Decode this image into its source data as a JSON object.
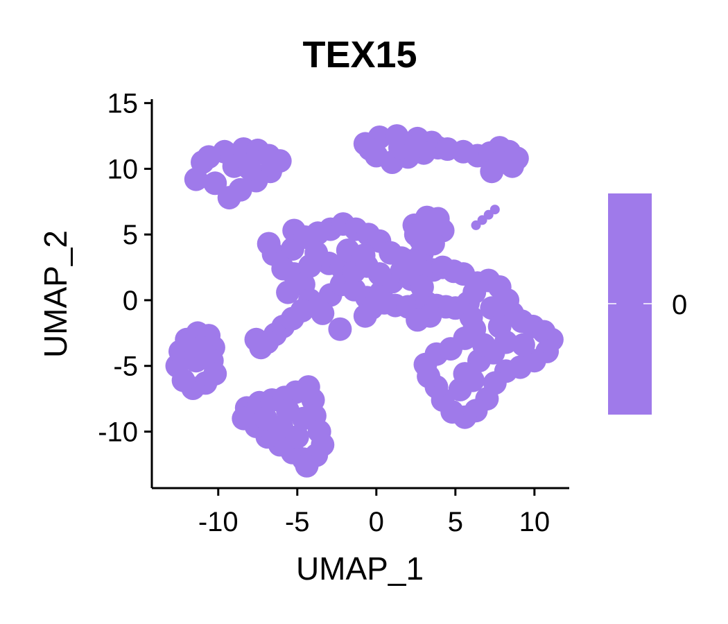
{
  "chart_data": {
    "type": "scatter",
    "title": "TEX15",
    "xlabel": "UMAP_1",
    "ylabel": "UMAP_2",
    "xlim": [
      -14.2,
      12.2
    ],
    "ylim": [
      -14.3,
      15.3
    ],
    "x_ticks": [
      {
        "value": -10,
        "label": "-10"
      },
      {
        "value": -5,
        "label": "-5"
      },
      {
        "value": 0,
        "label": "0"
      },
      {
        "value": 5,
        "label": "5"
      },
      {
        "value": 10,
        "label": "10"
      }
    ],
    "y_ticks": [
      {
        "value": 15,
        "label": "15"
      },
      {
        "value": 10,
        "label": "10"
      },
      {
        "value": 5,
        "label": "5"
      },
      {
        "value": 0,
        "label": "0"
      },
      {
        "value": -5,
        "label": "-5"
      },
      {
        "value": -10,
        "label": "-10"
      }
    ],
    "point_color": "#9F7AEA",
    "expression_value": 0,
    "legend": {
      "type": "colorbar",
      "placement": "right",
      "label": "0",
      "color": "#9F7AEA"
    },
    "grid": false,
    "clusters": [
      {
        "name": "top-left",
        "points": [
          [
            -11,
            10.5
          ],
          [
            -9.6,
            11.3
          ],
          [
            -8.4,
            11.5
          ],
          [
            -7.5,
            11.4
          ],
          [
            -6.8,
            11.0
          ],
          [
            -6.1,
            10.6
          ],
          [
            -6.7,
            9.8
          ],
          [
            -7.6,
            9.1
          ],
          [
            -8.6,
            8.4
          ],
          [
            -9.3,
            7.8
          ],
          [
            -10.2,
            8.9
          ],
          [
            -11.4,
            9.2
          ],
          [
            -10.6,
            10.9
          ],
          [
            -9.0,
            10.2
          ],
          [
            -8.0,
            10.0
          ]
        ]
      },
      {
        "name": "top-right",
        "points": [
          [
            -0.7,
            11.9
          ],
          [
            0.2,
            12.4
          ],
          [
            1.3,
            12.5
          ],
          [
            2.6,
            12.3
          ],
          [
            3.5,
            12.0
          ],
          [
            3.9,
            11.6
          ],
          [
            3.0,
            11.2
          ],
          [
            2.0,
            10.9
          ],
          [
            1.0,
            10.5
          ],
          [
            0.0,
            11.0
          ],
          [
            -0.4,
            11.5
          ],
          [
            4.5,
            11.5
          ],
          [
            5.5,
            11.3
          ],
          [
            6.4,
            11.0
          ],
          [
            7.2,
            11.2
          ],
          [
            7.8,
            11.6
          ],
          [
            8.4,
            11.3
          ],
          [
            8.9,
            10.8
          ],
          [
            8.6,
            10.2
          ],
          [
            7.8,
            10.5
          ],
          [
            7.3,
            9.8
          ],
          [
            1.5,
            11.6
          ],
          [
            2.5,
            11.7
          ]
        ]
      },
      {
        "name": "right-line",
        "points": [
          [
            6.3,
            5.7
          ],
          [
            6.7,
            6.1
          ],
          [
            7.1,
            6.5
          ],
          [
            7.5,
            6.9
          ]
        ]
      },
      {
        "name": "small-top-center",
        "points": [
          [
            2.4,
            5.7
          ],
          [
            3.2,
            6.3
          ],
          [
            3.9,
            6.2
          ],
          [
            4.2,
            5.3
          ],
          [
            3.6,
            4.3
          ],
          [
            2.8,
            4.6
          ],
          [
            2.5,
            5.0
          ],
          [
            2.9,
            3.6
          ],
          [
            2.7,
            3.0
          ],
          [
            3.3,
            5.3
          ]
        ]
      },
      {
        "name": "center",
        "points": [
          [
            -6.5,
            3.5
          ],
          [
            -6.8,
            4.3
          ],
          [
            -5.3,
            3.9
          ],
          [
            -5.2,
            5.3
          ],
          [
            -4.5,
            4.8
          ],
          [
            -3.7,
            5.1
          ],
          [
            -2.9,
            5.4
          ],
          [
            -2.1,
            5.8
          ],
          [
            -1.3,
            5.4
          ],
          [
            -0.5,
            5.0
          ],
          [
            0.2,
            4.5
          ],
          [
            0.9,
            3.6
          ],
          [
            1.6,
            3.2
          ],
          [
            2.3,
            3.0
          ],
          [
            3.0,
            2.6
          ],
          [
            3.6,
            2.3
          ],
          [
            4.2,
            2.5
          ],
          [
            4.9,
            2.2
          ],
          [
            5.5,
            2.0
          ],
          [
            -5.9,
            2.4
          ],
          [
            -5.2,
            2.0
          ],
          [
            -4.6,
            1.2
          ],
          [
            -5.6,
            0.6
          ],
          [
            -4.2,
            0.0
          ],
          [
            -3.6,
            -0.5
          ],
          [
            -2.9,
            0.4
          ],
          [
            -2.2,
            1.2
          ],
          [
            -1.4,
            0.8
          ],
          [
            -0.6,
            0.2
          ],
          [
            0.3,
            0.6
          ],
          [
            1.0,
            1.4
          ],
          [
            1.6,
            2.2
          ],
          [
            2.2,
            1.6
          ],
          [
            2.9,
            1.0
          ],
          [
            -3.0,
            2.8
          ],
          [
            -2.2,
            2.5
          ],
          [
            -1.4,
            2.2
          ],
          [
            -0.6,
            2.6
          ],
          [
            0.2,
            2.0
          ],
          [
            -3.8,
            3.6
          ],
          [
            -1.8,
            3.8
          ],
          [
            -0.8,
            3.4
          ],
          [
            -4.2,
            2.6
          ],
          [
            -0.3,
            -0.6
          ],
          [
            0.5,
            -0.2
          ],
          [
            1.2,
            -0.4
          ],
          [
            2.0,
            -0.5
          ],
          [
            2.6,
            -0.3
          ],
          [
            3.2,
            -0.2
          ],
          [
            3.8,
            -0.4
          ],
          [
            4.4,
            -0.5
          ],
          [
            5.0,
            -0.6
          ],
          [
            3.4,
            -1.2
          ],
          [
            2.6,
            -1.5
          ],
          [
            -4.7,
            -0.8
          ],
          [
            -5.3,
            -1.4
          ],
          [
            -5.9,
            -2.0
          ],
          [
            -6.4,
            -2.6
          ],
          [
            -6.9,
            -3.2
          ],
          [
            -7.3,
            -3.6
          ],
          [
            -7.6,
            -3.0
          ],
          [
            -2.3,
            -2.2
          ],
          [
            -0.7,
            -1.2
          ],
          [
            -3.4,
            -1.0
          ]
        ]
      },
      {
        "name": "right-large",
        "points": [
          [
            6.4,
            1.3
          ],
          [
            7.1,
            1.5
          ],
          [
            7.8,
            1.0
          ],
          [
            8.3,
            0.0
          ],
          [
            8.6,
            -1.0
          ],
          [
            9.2,
            -1.6
          ],
          [
            9.9,
            -2.0
          ],
          [
            10.6,
            -2.4
          ],
          [
            11.1,
            -3.0
          ],
          [
            10.8,
            -3.9
          ],
          [
            10.0,
            -4.6
          ],
          [
            9.1,
            -5.1
          ],
          [
            8.2,
            -5.4
          ],
          [
            7.5,
            -6.3
          ],
          [
            7.0,
            -7.5
          ],
          [
            6.3,
            -8.4
          ],
          [
            5.6,
            -8.9
          ],
          [
            4.8,
            -8.5
          ],
          [
            4.2,
            -7.6
          ],
          [
            3.8,
            -6.6
          ],
          [
            3.3,
            -5.8
          ],
          [
            3.1,
            -4.9
          ],
          [
            3.8,
            -4.1
          ],
          [
            4.7,
            -3.7
          ],
          [
            5.6,
            -2.9
          ],
          [
            6.2,
            -2.2
          ],
          [
            6.0,
            -1.3
          ],
          [
            5.8,
            -0.2
          ],
          [
            6.2,
            0.6
          ],
          [
            7.3,
            -0.6
          ],
          [
            7.8,
            -2.0
          ],
          [
            8.2,
            -3.2
          ],
          [
            7.4,
            -4.0
          ],
          [
            6.5,
            -4.6
          ],
          [
            5.6,
            -5.6
          ],
          [
            5.3,
            -6.8
          ],
          [
            6.1,
            -6.1
          ],
          [
            6.8,
            -3.4
          ],
          [
            9.3,
            -3.4
          ]
        ]
      },
      {
        "name": "left",
        "points": [
          [
            -12.6,
            -5.0
          ],
          [
            -12.4,
            -3.9
          ],
          [
            -12.0,
            -3.0
          ],
          [
            -11.3,
            -2.5
          ],
          [
            -10.6,
            -2.7
          ],
          [
            -10.3,
            -3.6
          ],
          [
            -10.4,
            -4.6
          ],
          [
            -10.2,
            -5.6
          ],
          [
            -10.8,
            -6.3
          ],
          [
            -11.6,
            -6.7
          ],
          [
            -12.2,
            -6.1
          ],
          [
            -11.4,
            -4.6
          ],
          [
            -11.1,
            -3.6
          ]
        ]
      },
      {
        "name": "bottom",
        "points": [
          [
            -8.2,
            -8.2
          ],
          [
            -7.4,
            -7.8
          ],
          [
            -6.6,
            -7.6
          ],
          [
            -5.8,
            -7.4
          ],
          [
            -5.1,
            -7.0
          ],
          [
            -4.3,
            -6.6
          ],
          [
            -4.0,
            -7.6
          ],
          [
            -3.9,
            -8.8
          ],
          [
            -3.6,
            -10.0
          ],
          [
            -3.4,
            -11.0
          ],
          [
            -3.8,
            -11.8
          ],
          [
            -4.6,
            -12.1
          ],
          [
            -5.3,
            -11.6
          ],
          [
            -6.1,
            -11.0
          ],
          [
            -6.9,
            -10.4
          ],
          [
            -7.6,
            -9.6
          ],
          [
            -8.4,
            -9.0
          ],
          [
            -7.0,
            -9.0
          ],
          [
            -6.0,
            -9.6
          ],
          [
            -5.0,
            -10.4
          ],
          [
            -4.6,
            -9.0
          ],
          [
            -4.4,
            -12.6
          ],
          [
            -5.6,
            -8.4
          ]
        ]
      }
    ]
  }
}
